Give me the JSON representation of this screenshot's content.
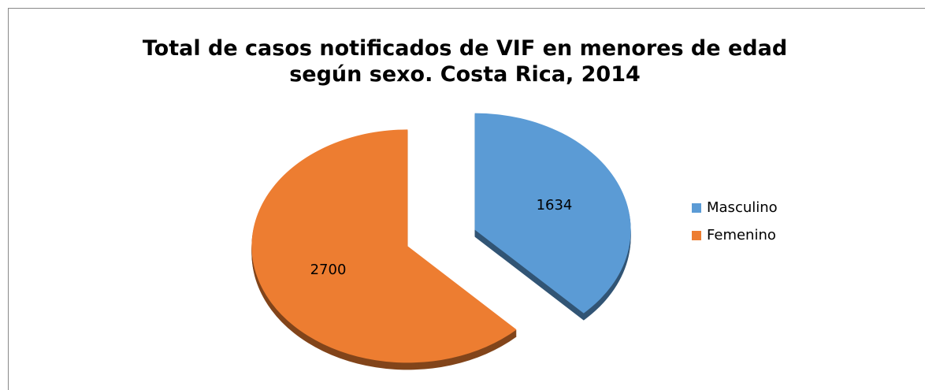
{
  "chart_data": {
    "type": "pie",
    "title": "Total de casos notificados de VIF en menores de edad según sexo. Costa Rica, 2014",
    "categories": [
      "Masculino",
      "Femenino"
    ],
    "values": [
      1634,
      2700
    ],
    "colors": [
      "#5b9bd5",
      "#ed7d31"
    ],
    "legend": "right"
  }
}
